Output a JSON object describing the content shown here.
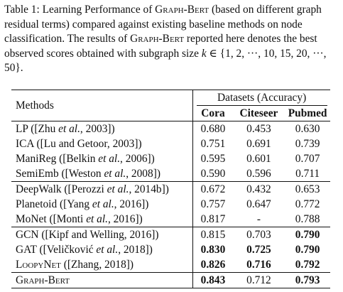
{
  "caption": {
    "prefix": "Table 1: Learning Performance of ",
    "model_name": "Graph-Bert",
    "part2": " (based on different graph residual terms) compared against existing baseline methods on node classification. The results of ",
    "part3": " reported here denotes the best observed scores obtained with subgraph size ",
    "variable": "k",
    "set": " ∈ {1, 2, ···, 10, 15, 20, ···, 50}."
  },
  "table": {
    "methods_header": "Methods",
    "datasets_header": "Datasets (Accuracy)",
    "columns": [
      "Cora",
      "Citeseer",
      "Pubmed"
    ],
    "groups": [
      [
        {
          "pre": "LP ([Zhu ",
          "etal": "et al.",
          "post": ", 2003])",
          "sc": false,
          "cora": "0.680",
          "citeseer": "0.453",
          "pubmed": "0.630",
          "bold": [
            false,
            false,
            false
          ]
        },
        {
          "pre": "ICA ([Lu and Getoor, 2003])",
          "etal": "",
          "post": "",
          "sc": false,
          "cora": "0.751",
          "citeseer": "0.691",
          "pubmed": "0.739",
          "bold": [
            false,
            false,
            false
          ]
        },
        {
          "pre": "ManiReg ([Belkin ",
          "etal": "et al.",
          "post": ", 2006])",
          "sc": false,
          "cora": "0.595",
          "citeseer": "0.601",
          "pubmed": "0.707",
          "bold": [
            false,
            false,
            false
          ]
        },
        {
          "pre": "SemiEmb ([Weston ",
          "etal": "et al.",
          "post": ", 2008])",
          "sc": false,
          "cora": "0.590",
          "citeseer": "0.596",
          "pubmed": "0.711",
          "bold": [
            false,
            false,
            false
          ]
        }
      ],
      [
        {
          "pre": "DeepWalk ([Perozzi ",
          "etal": "et al.",
          "post": ", 2014b])",
          "sc": false,
          "cora": "0.672",
          "citeseer": "0.432",
          "pubmed": "0.653",
          "bold": [
            false,
            false,
            false
          ]
        },
        {
          "pre": "Planetoid ([Yang ",
          "etal": "et al.",
          "post": ", 2016])",
          "sc": false,
          "cora": "0.757",
          "citeseer": "0.647",
          "pubmed": "0.772",
          "bold": [
            false,
            false,
            false
          ]
        },
        {
          "pre": "MoNet ([Monti ",
          "etal": "et al.",
          "post": ", 2016])",
          "sc": false,
          "cora": "0.817",
          "citeseer": "-",
          "pubmed": "0.788",
          "bold": [
            false,
            false,
            false
          ]
        }
      ],
      [
        {
          "pre": "GCN ([Kipf and Welling, 2016])",
          "etal": "",
          "post": "",
          "sc": false,
          "cora": "0.815",
          "citeseer": "0.703",
          "pubmed": "0.790",
          "bold": [
            false,
            false,
            true
          ]
        },
        {
          "pre": "GAT ([Veličković ",
          "etal": "et al.",
          "post": ", 2018])",
          "sc": false,
          "cora": "0.830",
          "citeseer": "0.725",
          "pubmed": "0.790",
          "bold": [
            true,
            true,
            true
          ]
        },
        {
          "pre": "LoopyNet",
          "etal": "",
          "post": " ([Zhang, 2018])",
          "sc": true,
          "cora": "0.826",
          "citeseer": "0.716",
          "pubmed": "0.792",
          "bold": [
            true,
            true,
            true
          ]
        }
      ],
      [
        {
          "pre": "Graph-Bert",
          "etal": "",
          "post": "",
          "sc": true,
          "cora": "0.843",
          "citeseer": "0.712",
          "pubmed": "0.793",
          "bold": [
            true,
            false,
            true
          ]
        }
      ]
    ]
  }
}
